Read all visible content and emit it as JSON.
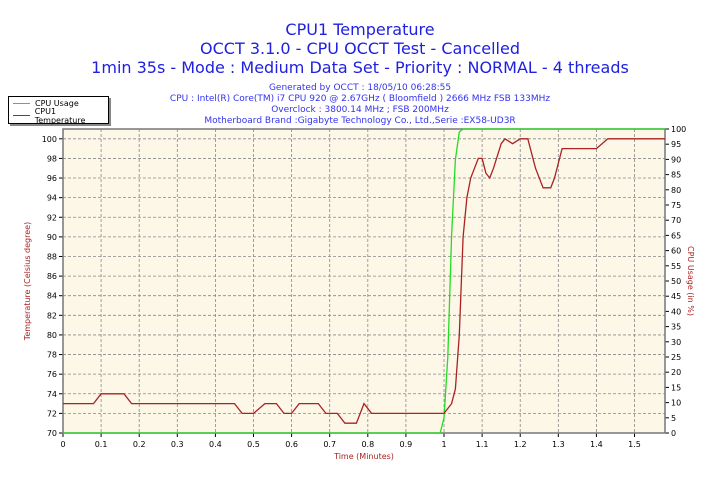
{
  "header": {
    "title": "CPU1 Temperature",
    "subtitle": "OCCT 3.1.0 - CPU OCCT Test - Cancelled",
    "info": "1min 35s - Mode : Medium Data Set - Priority : NORMAL - 4 threads",
    "generated": "Generated by OCCT : 18/05/10 06:28:55",
    "cpu": "CPU : Intel(R) Core(TM) i7 CPU 920 @ 2.67GHz ( Bloomfield ) 2666 MHz FSB 133MHz",
    "overclock": "Overclock : 3800.14 MHz ; FSB 200MHz",
    "motherboard": "Motherboard Brand :Gigabyte Technology Co., Ltd.,Serie :EX58-UD3R"
  },
  "chart_data": {
    "type": "line",
    "xlabel": "Time (Minutes)",
    "ylabel": "Temperature (Celsius degree)",
    "y2label": "CPU Usage (in %)",
    "xlim": [
      0,
      1.58
    ],
    "ylim": [
      70,
      101
    ],
    "y2lim": [
      0,
      100
    ],
    "xticks": [
      0,
      0.1,
      0.2,
      0.3,
      0.4,
      0.5,
      0.6,
      0.7,
      0.8,
      0.9,
      1,
      1.1,
      1.2,
      1.3,
      1.4,
      1.5
    ],
    "yticks": [
      70,
      72,
      74,
      76,
      78,
      80,
      82,
      84,
      86,
      88,
      90,
      92,
      94,
      96,
      98,
      100
    ],
    "y2ticks": [
      0,
      5,
      10,
      15,
      20,
      25,
      30,
      35,
      40,
      45,
      50,
      55,
      60,
      65,
      70,
      75,
      80,
      85,
      90,
      95,
      100
    ],
    "grid": true,
    "legend": "top-left",
    "series": [
      {
        "name": "CPU Usage",
        "axis": "right",
        "color": "#22dd22",
        "x": [
          0,
          0.99,
          1.0,
          1.01,
          1.02,
          1.03,
          1.04,
          1.05,
          1.58
        ],
        "y": [
          0,
          0,
          5,
          25,
          65,
          90,
          99,
          100,
          100
        ]
      },
      {
        "name": "CPU1 Temperature",
        "axis": "left",
        "color": "#aa2222",
        "x": [
          0,
          0.08,
          0.1,
          0.16,
          0.18,
          0.45,
          0.47,
          0.5,
          0.53,
          0.56,
          0.58,
          0.6,
          0.62,
          0.67,
          0.69,
          0.72,
          0.74,
          0.77,
          0.79,
          0.81,
          0.83,
          1.0,
          1.02,
          1.03,
          1.04,
          1.05,
          1.06,
          1.07,
          1.09,
          1.1,
          1.11,
          1.12,
          1.13,
          1.15,
          1.16,
          1.18,
          1.2,
          1.22,
          1.24,
          1.26,
          1.28,
          1.29,
          1.31,
          1.32,
          1.4,
          1.43,
          1.58
        ],
        "y": [
          73,
          73,
          74,
          74,
          73,
          73,
          72,
          72,
          73,
          73,
          72,
          72,
          73,
          73,
          72,
          72,
          71,
          71,
          73,
          72,
          72,
          72,
          73,
          74.5,
          80,
          90,
          94,
          96,
          98,
          98,
          96.5,
          96,
          97,
          99.5,
          100,
          99.5,
          100,
          100,
          97,
          95,
          95,
          96,
          99,
          99,
          99,
          100,
          100
        ]
      }
    ]
  }
}
